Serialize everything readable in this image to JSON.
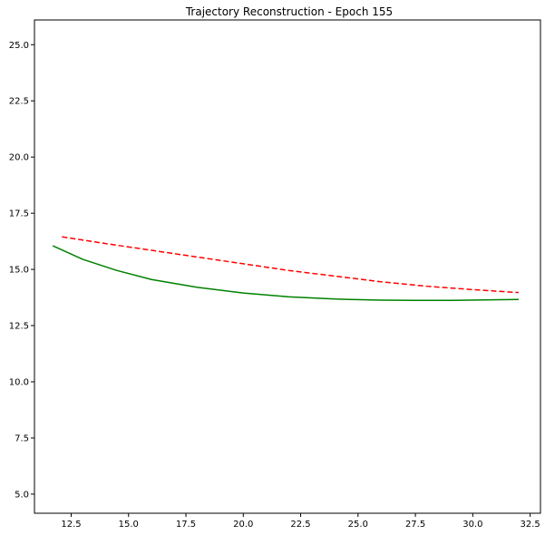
{
  "chart_data": {
    "type": "line",
    "title": "Trajectory Reconstruction - Epoch 155",
    "xlabel": "",
    "ylabel": "",
    "xlim": [
      10.9,
      32.95
    ],
    "ylim": [
      4.15,
      26.1
    ],
    "x_ticks": [
      12.5,
      15.0,
      17.5,
      20.0,
      22.5,
      25.0,
      27.5,
      30.0,
      32.5
    ],
    "x_tick_labels": [
      "12.5",
      "15.0",
      "17.5",
      "20.0",
      "22.5",
      "25.0",
      "27.5",
      "30.0",
      "32.5"
    ],
    "y_ticks": [
      5.0,
      7.5,
      10.0,
      12.5,
      15.0,
      17.5,
      20.0,
      22.5,
      25.0
    ],
    "y_tick_labels": [
      "5.0",
      "7.5",
      "10.0",
      "12.5",
      "15.0",
      "17.5",
      "20.0",
      "22.5",
      "25.0"
    ],
    "grid": false,
    "series": [
      {
        "color": "#008000",
        "style": "solid",
        "x": [
          11.7,
          13.0,
          14.5,
          16.0,
          18.0,
          20.0,
          22.0,
          24.0,
          26.0,
          27.5,
          29.0,
          30.5,
          32.0
        ],
        "y": [
          16.05,
          15.45,
          14.95,
          14.55,
          14.2,
          13.95,
          13.78,
          13.68,
          13.63,
          13.62,
          13.62,
          13.64,
          13.66
        ]
      },
      {
        "color": "#ff0000",
        "style": "dashed",
        "x": [
          12.1,
          14.0,
          16.0,
          18.0,
          20.0,
          22.0,
          24.0,
          26.0,
          28.0,
          30.0,
          32.0
        ],
        "y": [
          16.45,
          16.15,
          15.85,
          15.55,
          15.25,
          14.95,
          14.7,
          14.45,
          14.25,
          14.1,
          13.97
        ]
      }
    ]
  }
}
